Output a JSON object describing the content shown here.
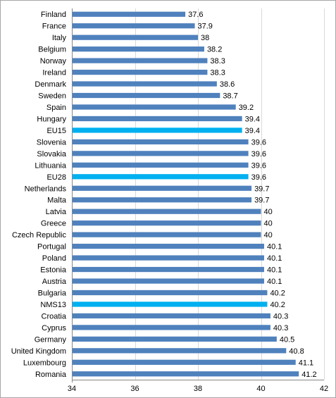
{
  "chart_data": {
    "type": "bar",
    "orientation": "horizontal",
    "title": "",
    "xlabel": "",
    "ylabel": "",
    "xlim": [
      34,
      42
    ],
    "x_ticks": [
      34,
      36,
      38,
      40,
      42
    ],
    "grid": true,
    "legend": "none",
    "colors": {
      "default": "#4f81bd",
      "highlight": "#00b0f0"
    },
    "highlighted": [
      "EU15",
      "EU28",
      "NMS13"
    ],
    "categories": [
      "Finland",
      "France",
      "Italy",
      "Belgium",
      "Norway",
      "Ireland",
      "Denmark",
      "Sweden",
      "Spain",
      "Hungary",
      "EU15",
      "Slovenia",
      "Slovakia",
      "Lithuania",
      "EU28",
      "Netherlands",
      "Malta",
      "Latvia",
      "Greece",
      "Czech Republic",
      "Portugal",
      "Poland",
      "Estonia",
      "Austria",
      "Bulgaria",
      "NMS13",
      "Croatia",
      "Cyprus",
      "Germany",
      "United Kingdom",
      "Luxembourg",
      "Romania"
    ],
    "values": [
      37.6,
      37.9,
      38,
      38.2,
      38.3,
      38.3,
      38.6,
      38.7,
      39.2,
      39.4,
      39.4,
      39.6,
      39.6,
      39.6,
      39.6,
      39.7,
      39.7,
      40,
      40,
      40,
      40.1,
      40.1,
      40.1,
      40.1,
      40.2,
      40.2,
      40.3,
      40.3,
      40.5,
      40.8,
      41.1,
      41.2
    ]
  }
}
